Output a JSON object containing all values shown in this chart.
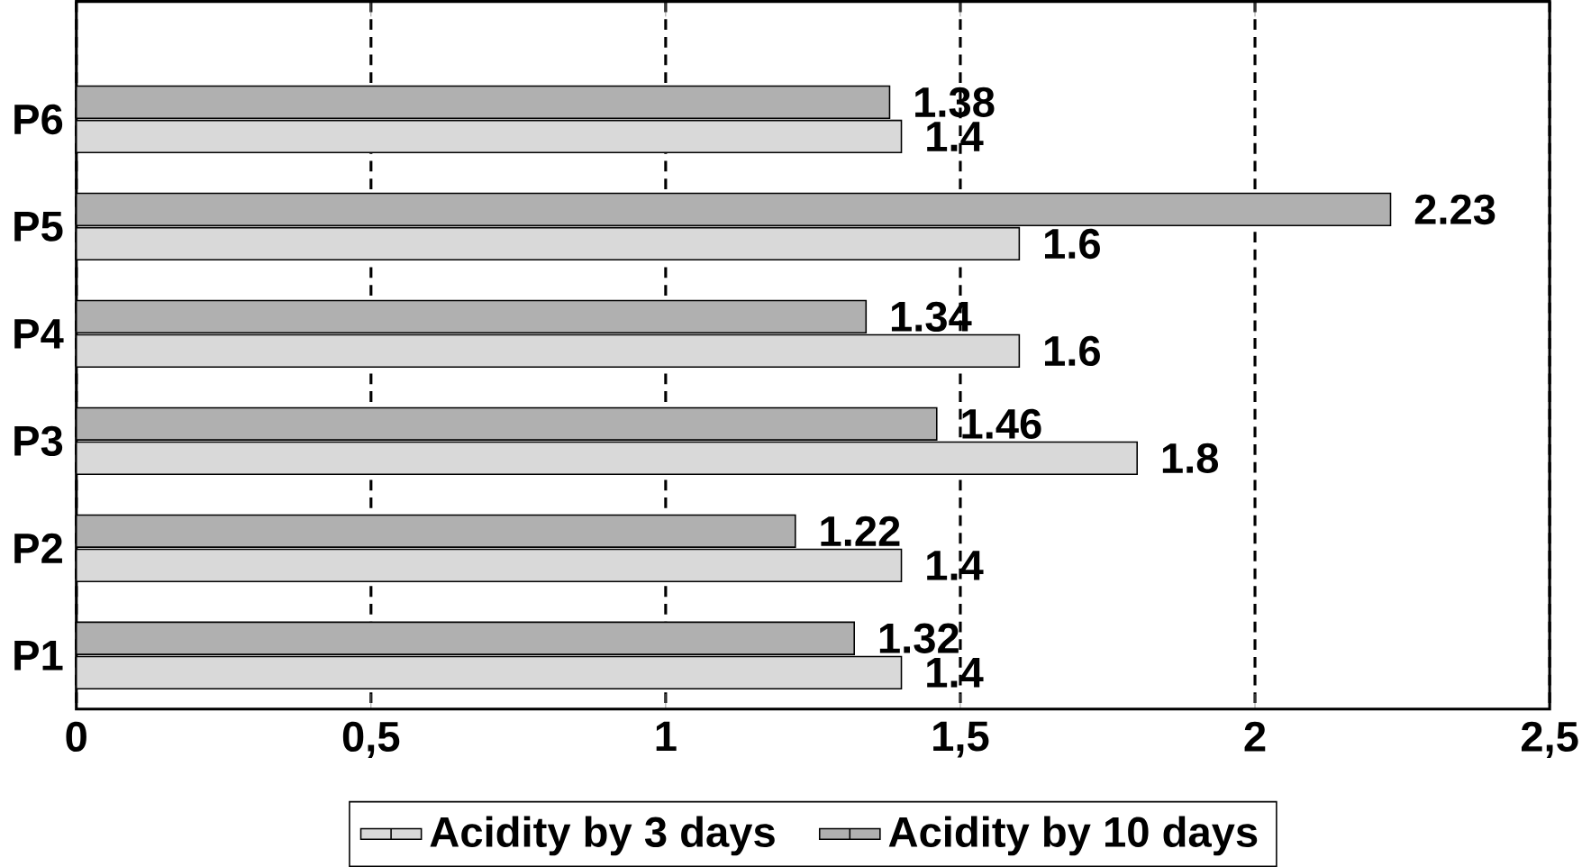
{
  "chart_data": {
    "type": "bar",
    "orientation": "horizontal",
    "categories": [
      "P6",
      "P5",
      "P4",
      "P3",
      "P2",
      "P1"
    ],
    "series": [
      {
        "name": "Acidity by 3 days",
        "color": "#d9d9d9",
        "values": [
          1.4,
          1.6,
          1.6,
          1.8,
          1.4,
          1.4
        ]
      },
      {
        "name": "Acidity by 10 days",
        "color": "#b0b0b0",
        "values": [
          1.38,
          2.23,
          1.34,
          1.46,
          1.22,
          1.32
        ]
      }
    ],
    "xlim": [
      0,
      2.5
    ],
    "xticks": [
      0,
      {
        "value": 0.5,
        "label": "0,5"
      },
      1,
      {
        "value": 1.5,
        "label": "1,5"
      },
      2,
      {
        "value": 2.5,
        "label": "2,5"
      }
    ],
    "grid": "x",
    "legend": "bottom",
    "data_labels": true
  }
}
